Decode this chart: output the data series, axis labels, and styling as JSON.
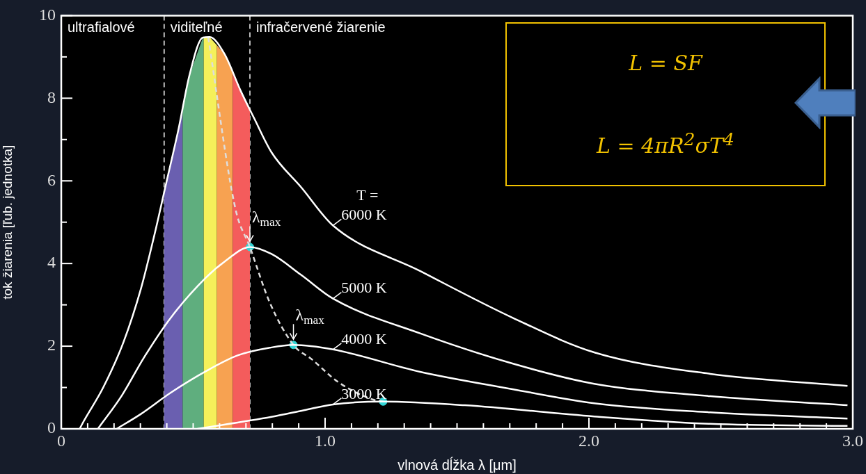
{
  "chart_data": {
    "type": "line",
    "xlabel": "vlnová dĺžka λ [μm]",
    "ylabel": "tok žiarenia [ľub. jednotka]",
    "xlim": [
      0,
      3
    ],
    "ylim": [
      0,
      10
    ],
    "xticks": [
      0,
      {
        "value": 0.1,
        "label": null
      },
      {
        "value": 0.2,
        "label": null
      },
      {
        "value": 0.3,
        "label": null
      },
      {
        "value": 0.4,
        "label": null
      },
      {
        "value": 0.5,
        "label": null
      },
      {
        "value": 0.6,
        "label": null
      },
      {
        "value": 0.7,
        "label": null
      },
      {
        "value": 0.8,
        "label": null
      },
      {
        "value": 0.9,
        "label": null
      },
      {
        "value": 1,
        "label": "1.0"
      },
      {
        "value": 1.1,
        "label": null
      },
      {
        "value": 1.2,
        "label": null
      },
      {
        "value": 1.3,
        "label": null
      },
      {
        "value": 1.4,
        "label": null
      },
      {
        "value": 1.5,
        "label": null
      },
      {
        "value": 1.6,
        "label": null
      },
      {
        "value": 1.7,
        "label": null
      },
      {
        "value": 1.8,
        "label": null
      },
      {
        "value": 1.9,
        "label": null
      },
      {
        "value": 2,
        "label": "2.0"
      },
      {
        "value": 2.1,
        "label": null
      },
      {
        "value": 2.2,
        "label": null
      },
      {
        "value": 2.3,
        "label": null
      },
      {
        "value": 2.4,
        "label": null
      },
      {
        "value": 2.5,
        "label": null
      },
      {
        "value": 2.6,
        "label": null
      },
      {
        "value": 2.7,
        "label": null
      },
      {
        "value": 2.8,
        "label": null
      },
      {
        "value": 2.9,
        "label": null
      },
      {
        "value": 3,
        "label": "3.0"
      }
    ],
    "yticks": [
      0,
      {
        "value": 1,
        "label": null
      },
      2,
      {
        "value": 3,
        "label": null
      },
      4,
      {
        "value": 5,
        "label": null
      },
      6,
      {
        "value": 7,
        "label": null
      },
      8,
      {
        "value": 9,
        "label": null
      },
      10
    ],
    "series": [
      {
        "color": "#ffffff",
        "x": [
          0.07,
          0.083,
          0.159,
          0.236,
          0.302,
          0.353,
          0.399,
          0.445,
          0.486,
          0.537,
          0.562,
          0.618,
          0.68,
          0.73,
          0.797,
          0.91,
          1.03,
          1.36,
          1.71,
          2.02,
          2.46,
          2.98
        ],
        "values": [
          0,
          0.16,
          1.0,
          2.1,
          3.39,
          4.69,
          5.98,
          7.27,
          8.56,
          9.47,
          9.48,
          9.08,
          8.18,
          7.53,
          6.69,
          5.84,
          4.92,
          3.82,
          2.69,
          1.85,
          1.33,
          1.04
        ]
      },
      {
        "color": "#ffffff",
        "x": [
          0.139,
          0.23,
          0.312,
          0.414,
          0.547,
          0.618,
          0.715,
          0.797,
          0.91,
          1.03,
          1.36,
          1.71,
          2.02,
          2.46,
          2.98
        ],
        "values": [
          0,
          0.81,
          1.71,
          2.68,
          3.65,
          4.04,
          4.4,
          4.23,
          3.72,
          3.15,
          2.31,
          1.58,
          1.09,
          0.79,
          0.57
        ]
      },
      {
        "color": "#ffffff",
        "x": [
          0.21,
          0.302,
          0.414,
          0.547,
          0.67,
          0.797,
          0.88,
          1.03,
          1.36,
          1.71,
          2.02,
          2.46,
          2.98
        ],
        "values": [
          0,
          0.36,
          0.87,
          1.39,
          1.78,
          1.97,
          2.03,
          1.92,
          1.38,
          0.96,
          0.62,
          0.4,
          0.25
        ]
      },
      {
        "color": "#ffffff",
        "x": [
          0.516,
          0.797,
          0.92,
          1.03,
          1.22,
          1.53,
          2.02,
          2.46,
          2.98
        ],
        "values": [
          0,
          0.29,
          0.45,
          0.59,
          0.66,
          0.57,
          0.3,
          0.12,
          0.07
        ]
      },
      {
        "color": "#dddddd",
        "line_style": "dashed",
        "x": [
          0.557,
          0.66,
          0.715,
          0.79,
          0.88,
          0.95,
          1.05,
          1.18,
          1.22
        ],
        "values": [
          9.47,
          5.33,
          4.4,
          3.06,
          2.03,
          1.68,
          1.13,
          0.71,
          0.66
        ]
      },
      {
        "type": "scatter",
        "color": "#33d6d6",
        "marker": "circle",
        "x": [
          0.715,
          0.88,
          1.22
        ],
        "values": [
          4.4,
          2.03,
          0.66
        ]
      }
    ],
    "bands": [
      {
        "axis": "x",
        "from": 0.39,
        "to": 0.46,
        "color": "#6a5fb0"
      },
      {
        "axis": "x",
        "from": 0.46,
        "to": 0.54,
        "color": "#5fae7e"
      },
      {
        "axis": "x",
        "from": 0.54,
        "to": 0.59,
        "color": "#f5f05a"
      },
      {
        "axis": "x",
        "from": 0.59,
        "to": 0.65,
        "color": "#f7a251"
      },
      {
        "axis": "x",
        "from": 0.65,
        "to": 0.715,
        "color": "#f45c5c"
      }
    ],
    "ref_lines": [
      {
        "axis": "x",
        "value": 0.39,
        "color": "#bbbbbb",
        "line_style": "dashed"
      },
      {
        "axis": "x",
        "value": 0.715,
        "color": "#bbbbbb",
        "line_style": "dashed"
      }
    ],
    "annotations": [
      "ultrafialové",
      "viditeľné",
      "infračervené žiarenie",
      "T =",
      "L = SF",
      "L = 4πR$^{2}$σT$^{4}$",
      {
        "text": "6000 K",
        "x": 1.03,
        "y": 4.92
      },
      {
        "text": "5000 K",
        "x": 1.03,
        "y": 3.15
      },
      {
        "text": "4000 K",
        "x": 1.03,
        "y": 1.92
      },
      {
        "text": "3000 K",
        "x": 1.03,
        "y": 0.59
      },
      {
        "text": "λ$_{max}$",
        "x": 0.715,
        "y": 4.4
      },
      {
        "text": "λ$_{max}$",
        "x": 0.88,
        "y": 2.03
      }
    ],
    "legend": false,
    "grid": false
  }
}
